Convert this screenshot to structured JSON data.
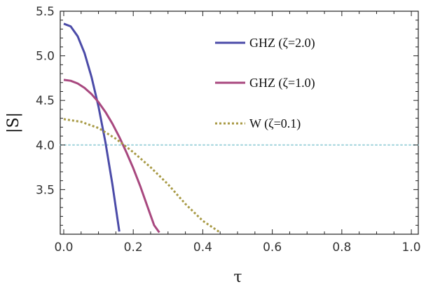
{
  "chart_data": {
    "type": "line",
    "xlabel": "τ",
    "ylabel": "|S|",
    "xlim": [
      -0.01,
      1.02
    ],
    "ylim": [
      3.0,
      5.5
    ],
    "xticks": [
      "0.0",
      "0.2",
      "0.4",
      "0.6",
      "0.8",
      "1.0"
    ],
    "yticks": [
      "3.5",
      "4.0",
      "4.5",
      "5.0",
      "5.5"
    ],
    "grid": false,
    "legend_position": "top-right",
    "reference_line": {
      "y": 4.0,
      "color": "#9fd3dc",
      "style": "dotted"
    },
    "series": [
      {
        "name": "GHZ (ζ=2.0)",
        "color": "#4b4ba8",
        "style": "solid",
        "x": [
          0.0,
          0.02,
          0.04,
          0.06,
          0.08,
          0.1,
          0.12,
          0.14,
          0.16
        ],
        "y": [
          5.36,
          5.33,
          5.22,
          5.03,
          4.76,
          4.43,
          4.03,
          3.56,
          3.03
        ]
      },
      {
        "name": "GHZ (ζ=1.0)",
        "color": "#a8487f",
        "style": "solid",
        "x": [
          0.0,
          0.02,
          0.04,
          0.06,
          0.08,
          0.1,
          0.12,
          0.14,
          0.16,
          0.18,
          0.2,
          0.22,
          0.24,
          0.26,
          0.275
        ],
        "y": [
          4.73,
          4.72,
          4.69,
          4.64,
          4.57,
          4.48,
          4.37,
          4.24,
          4.09,
          3.92,
          3.74,
          3.54,
          3.32,
          3.1,
          3.02
        ]
      },
      {
        "name": "W (ζ=0.1)",
        "color": "#a89a45",
        "style": "dotted",
        "x": [
          0.0,
          0.05,
          0.1,
          0.15,
          0.2,
          0.25,
          0.3,
          0.35,
          0.4,
          0.45
        ],
        "y": [
          4.29,
          4.26,
          4.19,
          4.07,
          3.92,
          3.75,
          3.56,
          3.34,
          3.15,
          3.02
        ]
      }
    ]
  }
}
